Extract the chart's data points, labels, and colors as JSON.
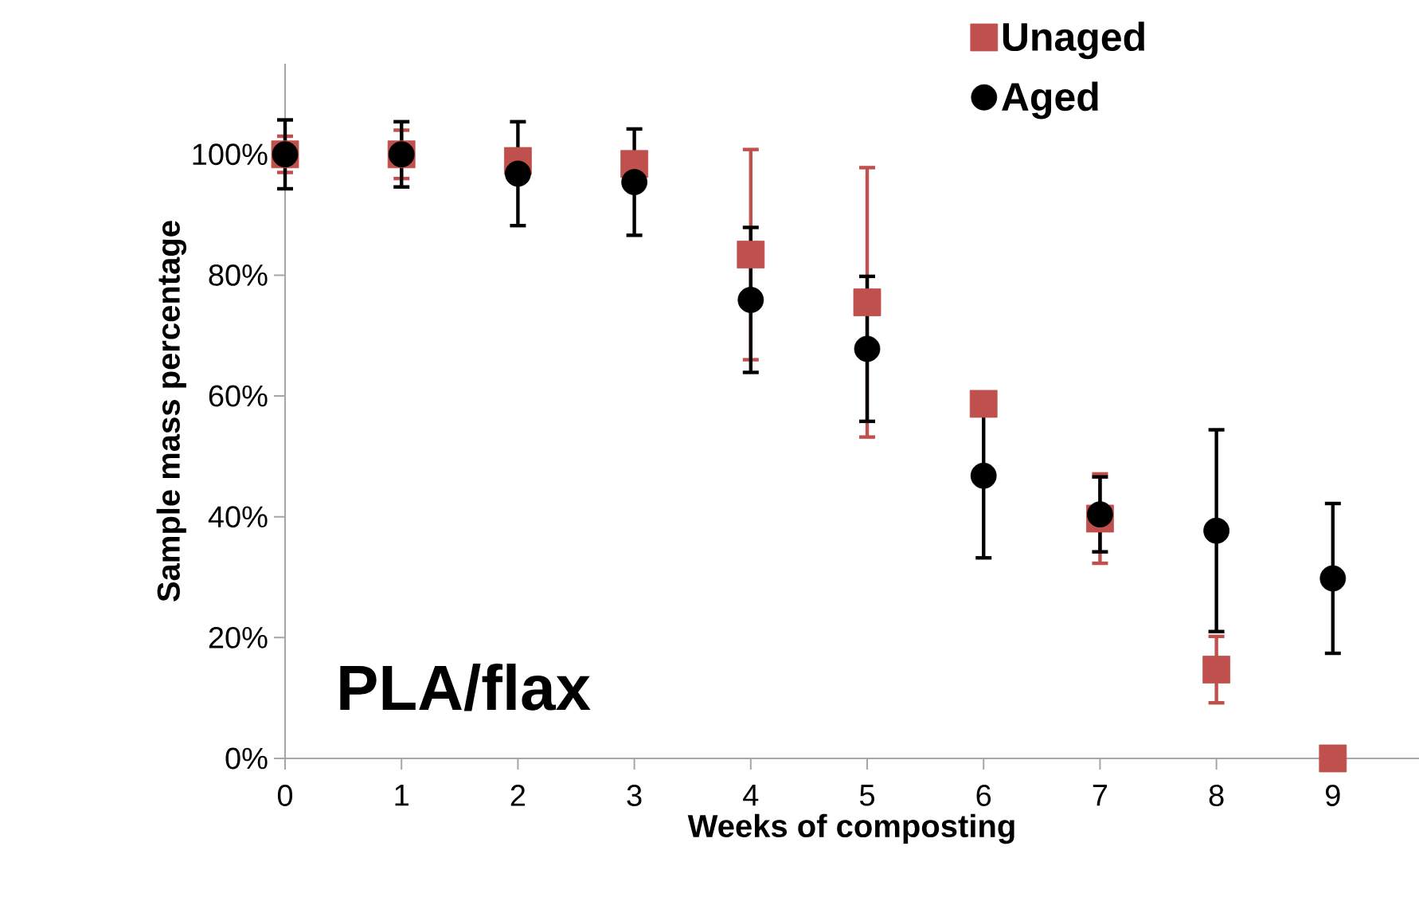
{
  "chart_data": {
    "type": "scatter",
    "xlabel": "Weeks of composting",
    "ylabel": "Sample mass percentage",
    "annotations": [
      "PLA/flax"
    ],
    "x": [
      0,
      1,
      2,
      3,
      4,
      5,
      6,
      7,
      8,
      9
    ],
    "xlim": [
      0,
      9.74
    ],
    "xticks": [
      0,
      1,
      2,
      3,
      4,
      5,
      6,
      7,
      8,
      9
    ],
    "ylim": [
      0,
      115
    ],
    "yticks": [
      {
        "value": 0,
        "label": "0%"
      },
      {
        "value": 20,
        "label": "20%"
      },
      {
        "value": 40,
        "label": "40%"
      },
      {
        "value": 60,
        "label": "60%"
      },
      {
        "value": 80,
        "label": "80%"
      },
      {
        "value": 100,
        "label": "100%"
      }
    ],
    "grid": false,
    "legend": "top right",
    "series": [
      {
        "name": "Unaged",
        "color": "#c0504d",
        "marker": "square",
        "values": [
          100,
          100,
          98.9,
          98.4,
          83.4,
          75.5,
          58.7,
          39.7,
          14.7,
          0
        ],
        "errors": [
          3,
          4,
          null,
          null,
          17.4,
          22.3,
          null,
          7.4,
          5.5,
          null
        ]
      },
      {
        "name": "Aged",
        "color": "#000000",
        "marker": "circle",
        "values": [
          100,
          100,
          96.8,
          95.4,
          75.9,
          67.8,
          46.8,
          40.4,
          37.7,
          29.8
        ],
        "errors": [
          5.7,
          5.4,
          8.6,
          8.8,
          12,
          12,
          13.6,
          6.2,
          16.7,
          12.4
        ]
      }
    ]
  }
}
